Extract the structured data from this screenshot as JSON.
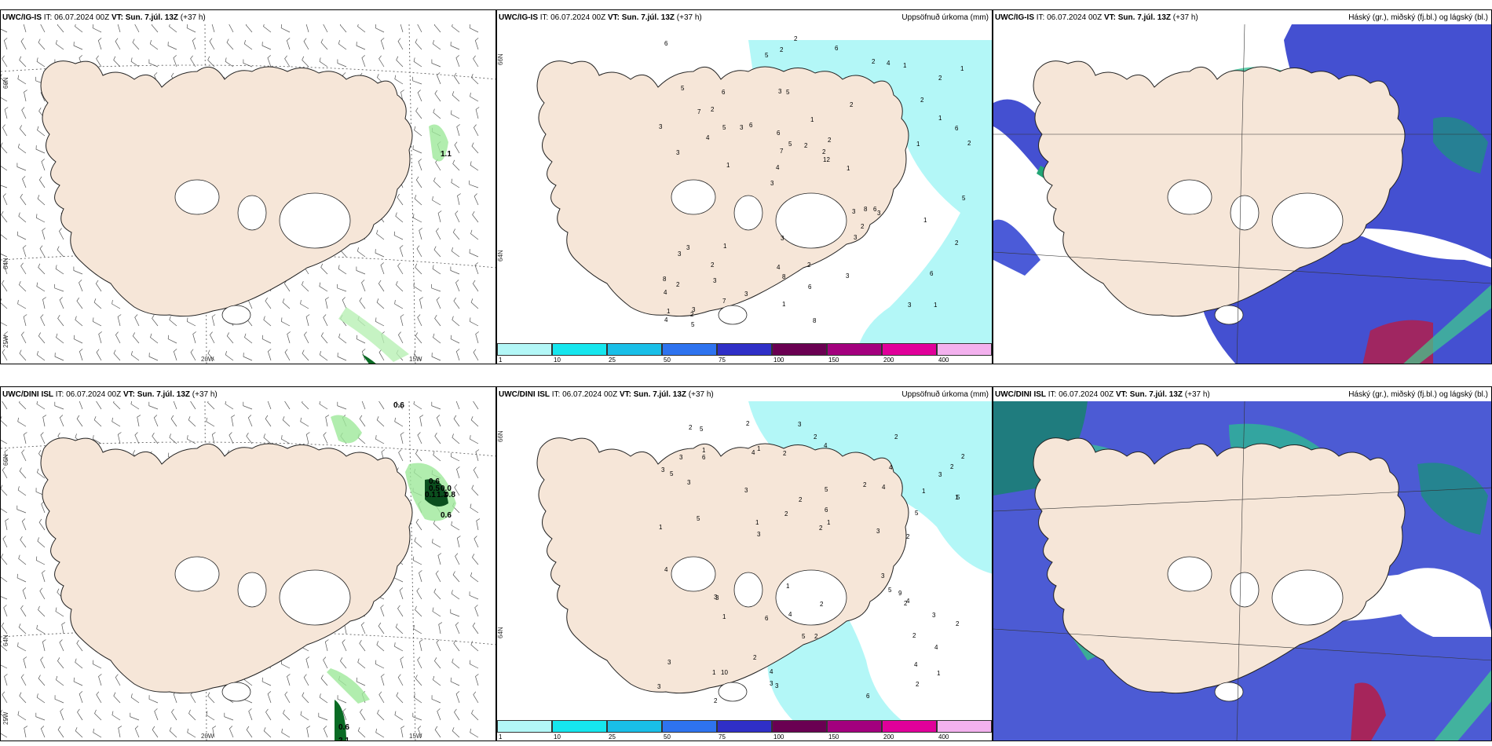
{
  "rows": [
    {
      "model": "UWC/IG-IS",
      "it_label": "IT:",
      "it_value": "06.07.2024 00Z",
      "vt_label": "VT:",
      "vt_value": "Sun. 7.júl. 13Z",
      "lead": "(+37 h)"
    },
    {
      "model": "UWC/DINI ISL",
      "it_label": "IT:",
      "it_value": "06.07.2024 00Z",
      "vt_label": "VT:",
      "vt_value": "Sun. 7.júl. 13Z",
      "lead": "(+37 h)"
    }
  ],
  "panel_titles": {
    "precip": "Uppsöfnuð úrkoma (mm)",
    "cloud": "Háský (gr.), miðský (fj.bl.) og lágský (bl.)"
  },
  "axis_labels": {
    "lon_20": "20W",
    "lon_15": "15W",
    "lat_66": "66N",
    "lat_64": "64N",
    "lon_25": "25W"
  },
  "legend": {
    "ticks": [
      "1",
      "10",
      "25",
      "50",
      "75",
      "100",
      "150",
      "200",
      "400"
    ],
    "colors": [
      "#b3f7f7",
      "#16e6ee",
      "#19bfe8",
      "#2e73ef",
      "#2f2fc7",
      "#6a0052",
      "#a3007e",
      "#e0009a",
      "#f3b1ee"
    ]
  },
  "precip_labels_top": [
    "1",
    "3",
    "2",
    "3",
    "2",
    "3",
    "3",
    "1",
    "3",
    "6",
    "4",
    "3",
    "5",
    "2",
    "3",
    "5",
    "2",
    "2",
    "3",
    "1",
    "4",
    "4",
    "7",
    "6",
    "2",
    "1",
    "3",
    "6",
    "6",
    "8",
    "3",
    "4",
    "3",
    "7",
    "6",
    "2",
    "1",
    "8",
    "12",
    "3",
    "2",
    "1",
    "2",
    "3",
    "2",
    "5",
    "4",
    "2",
    "1",
    "2",
    "1",
    "3",
    "2",
    "4",
    "2",
    "6",
    "5",
    "5",
    "2",
    "3",
    "3",
    "8",
    "5",
    "8",
    "6",
    "7",
    "5",
    "6",
    "6",
    "2",
    "2",
    "1",
    "1",
    "1",
    "1"
  ],
  "precip_labels_bottom": [
    "1",
    "2",
    "2",
    "2",
    "3",
    "4",
    "3",
    "3",
    "2",
    "1",
    "4",
    "5",
    "5",
    "4",
    "4",
    "5",
    "6",
    "3",
    "3",
    "2",
    "2",
    "5",
    "3",
    "4",
    "2",
    "4",
    "4",
    "5",
    "10",
    "3",
    "2",
    "2",
    "1",
    "2",
    "1",
    "2",
    "3",
    "2",
    "2",
    "5",
    "3",
    "3",
    "6",
    "3",
    "1",
    "2",
    "3",
    "4",
    "2",
    "3",
    "5",
    "3",
    "6",
    "9",
    "2",
    "1",
    "1",
    "2",
    "1",
    "1",
    "2",
    "4",
    "3",
    "2",
    "1",
    "3",
    "5",
    "6",
    "4",
    "2",
    "1"
  ],
  "wind_values": {
    "top": [
      "1.1"
    ],
    "bottom": [
      "0.6",
      "0.6",
      "0.5",
      "0.0",
      "0.1",
      "1.3",
      "0.8",
      "0.6",
      "0.6",
      "2.1"
    ]
  }
}
